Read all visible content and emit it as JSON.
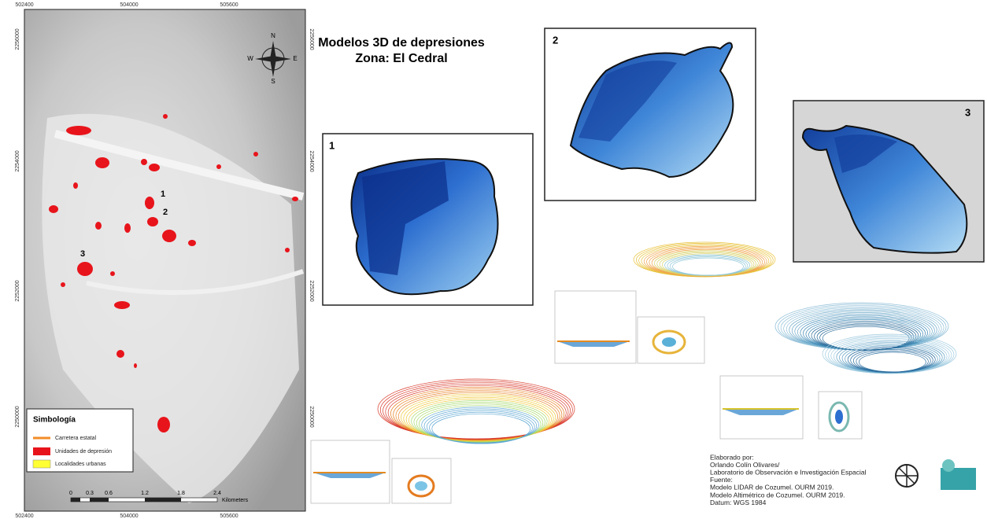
{
  "title": {
    "line1": "Modelos 3D de depresiones",
    "line2": "Zona: El Cedral"
  },
  "map": {
    "top_labels": [
      "502400",
      "504000",
      "505600"
    ],
    "bottom_labels": [
      "502400",
      "504000",
      "505600"
    ],
    "left_labels": [
      "2256000",
      "2254000",
      "2252000",
      "2250000"
    ],
    "right_labels": [
      "2256000",
      "2254000",
      "2252000",
      "2250000"
    ],
    "site_labels": [
      "1",
      "2",
      "3"
    ],
    "compass": {
      "n": "N",
      "s": "S",
      "w": "W",
      "e": "E"
    }
  },
  "legend": {
    "title": "Simbología",
    "items": [
      "Carretera estatal",
      "Unidades de depresión",
      "Localidades urbanas"
    ]
  },
  "scale": {
    "ticks": [
      "0",
      "0.3",
      "0.6",
      "1.2",
      "1.8",
      "2.4"
    ],
    "unit": "Kilometers"
  },
  "panels": [
    "1",
    "2",
    "3"
  ],
  "credits": [
    "Elaborado por:",
    "Orlando Colín Olivares/",
    "Laboratorio de Observación e Investigación Espacial",
    "Fuente:",
    "Modelo LIDAR de Cozumel. OURM 2019.",
    "Modelo Altimétrico de Cozumel. OURM 2019.",
    "Datum: WGS 1984"
  ]
}
